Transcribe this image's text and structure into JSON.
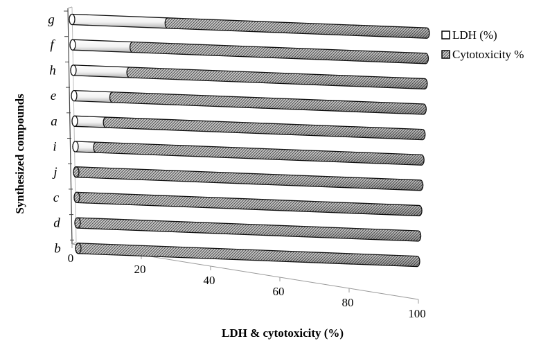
{
  "chart_data": {
    "type": "bar",
    "orientation": "horizontal",
    "stacked": true,
    "style": "3d-cylinder",
    "title": "",
    "xlabel": "LDH & cytotoxicity (%)",
    "ylabel": "Synthesized compounds",
    "xlim": [
      0,
      100
    ],
    "xticks": [
      0,
      20,
      40,
      60,
      80,
      100
    ],
    "grid": false,
    "legend_position": "top-right",
    "categories": [
      "b",
      "d",
      "c",
      "j",
      "i",
      "a",
      "e",
      "h",
      "f",
      "g"
    ],
    "series": [
      {
        "name": "LDH (%)",
        "color": "#ffffff",
        "values": [
          0,
          0,
          0,
          0,
          6,
          9,
          11,
          16,
          17,
          27
        ]
      },
      {
        "name": "Cytotoxicity %",
        "color": "hatched-gray",
        "values": [
          100,
          100,
          100,
          100,
          94,
          91,
          89,
          84,
          83,
          73
        ]
      }
    ]
  }
}
